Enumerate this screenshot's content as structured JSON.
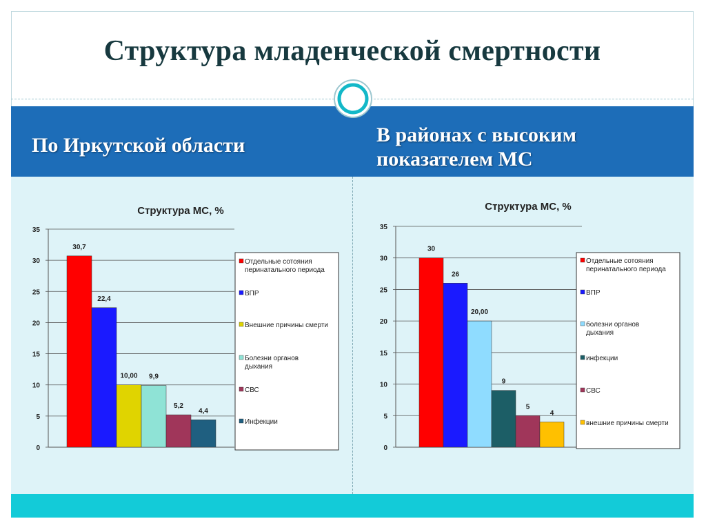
{
  "page": {
    "title": "Структура младенческой смертности",
    "left_heading": "По Иркутской области",
    "right_heading": "В районах с высоким показателем МС"
  },
  "colors": {
    "title": "#17393f",
    "band": "#1d6db8",
    "content_bg": "#def3f8",
    "footer": "#13cbd8"
  },
  "chart_data": [
    {
      "type": "bar",
      "title": "Структура МС, %",
      "ylim": [
        0,
        35
      ],
      "yticks": [
        "0",
        "5",
        "10",
        "15",
        "20",
        "25",
        "30",
        "35"
      ],
      "grid": true,
      "legend_position": "right",
      "series": [
        {
          "name": "Отдельные сотояния перинатального периода",
          "value": 30.7,
          "label": "30,7",
          "color": "#ff0000"
        },
        {
          "name": "ВПР",
          "value": 22.4,
          "label": "22,4",
          "color": "#1a1aff"
        },
        {
          "name": "Внешние причины смерти",
          "value": 10.0,
          "label": "10,00",
          "color": "#e0d400"
        },
        {
          "name": "Болезни органов дыхания",
          "value": 9.9,
          "label": "9,9",
          "color": "#8fe3d6"
        },
        {
          "name": "СВС",
          "value": 5.2,
          "label": "5,2",
          "color": "#a0365a"
        },
        {
          "name": "Инфекции",
          "value": 4.4,
          "label": "4,4",
          "color": "#1f5f80"
        }
      ]
    },
    {
      "type": "bar",
      "title": "Структура МС, %",
      "ylim": [
        0,
        35
      ],
      "yticks": [
        "0",
        "5",
        "10",
        "15",
        "20",
        "25",
        "30",
        "35"
      ],
      "grid": true,
      "legend_position": "right",
      "series": [
        {
          "name": "Отдельные сотояния перинатального периода",
          "value": 30,
          "label": "30",
          "color": "#ff0000"
        },
        {
          "name": "ВПР",
          "value": 26,
          "label": "26",
          "color": "#1a1aff"
        },
        {
          "name": "болезни органов дыхания",
          "value": 20.0,
          "label": "20,00",
          "color": "#8fdcff"
        },
        {
          "name": "инфекции",
          "value": 9,
          "label": "9",
          "color": "#1c5e66"
        },
        {
          "name": "СВС",
          "value": 5,
          "label": "5",
          "color": "#a0365a"
        },
        {
          "name": "внешние причины смерти",
          "value": 4,
          "label": "4",
          "color": "#ffc000"
        }
      ]
    }
  ]
}
